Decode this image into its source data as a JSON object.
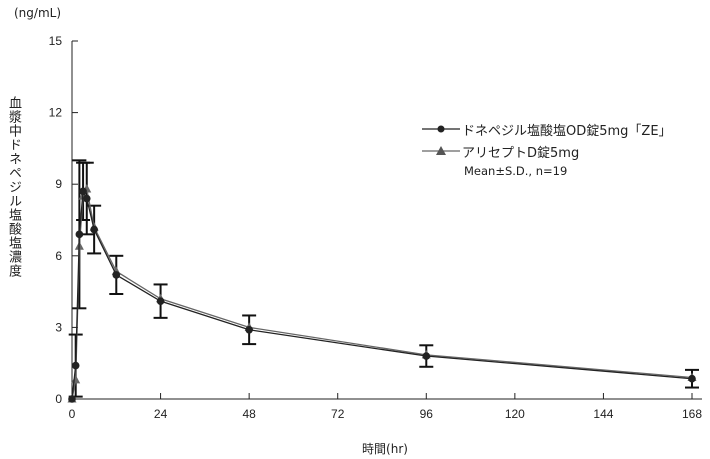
{
  "chart_data": {
    "type": "line",
    "ylabel": "血漿中ドネペジル塩酸塩濃度",
    "yunit": "(ng/mL)",
    "xlabel": "時間(hr)",
    "xlim": [
      0,
      168
    ],
    "ylim": [
      0,
      15
    ],
    "xticks": [
      0,
      24,
      48,
      72,
      96,
      120,
      144,
      168
    ],
    "yticks": [
      0,
      3,
      6,
      9,
      12,
      15
    ],
    "x": [
      0,
      1,
      2,
      3,
      4,
      6,
      12,
      24,
      48,
      96,
      168
    ],
    "series": [
      {
        "name": "ドネペジル塩酸塩OD錠5mg「ZE」",
        "marker": "circle",
        "color": "#222222",
        "values": [
          0,
          1.4,
          6.9,
          8.7,
          8.4,
          7.1,
          5.2,
          4.1,
          2.9,
          1.8,
          0.85
        ],
        "sd": [
          0,
          1.3,
          3.1,
          1.2,
          1.5,
          1.0,
          0.8,
          0.7,
          0.6,
          0.45,
          0.37
        ]
      },
      {
        "name": "アリセプトD錠5mg",
        "marker": "triangle",
        "color": "#666666",
        "values": [
          0,
          0.8,
          6.4,
          8.5,
          8.8,
          7.2,
          5.35,
          4.2,
          3.0,
          1.85,
          0.9
        ]
      }
    ],
    "note": "Mean±S.D., n=19",
    "legend": "right",
    "grid": false
  }
}
